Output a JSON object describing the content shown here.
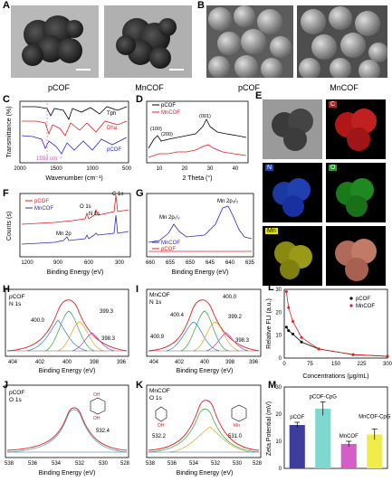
{
  "panels": {
    "A": {
      "letter": "A",
      "captions": [
        "pCOF",
        "MnCOF"
      ]
    },
    "B": {
      "letter": "B",
      "captions": [
        "pCOF",
        "MnCOF"
      ]
    },
    "C": {
      "letter": "C",
      "ylabel": "Transmittance (%)",
      "xlabel": "Wavenumber (cm⁻¹)",
      "ticks": [
        "2000",
        "1500",
        "1000",
        "500"
      ],
      "labels": {
        "tph": "Tph",
        "dha": "Dha",
        "pcof": "pCOF",
        "peak": "1592 cm⁻¹"
      }
    },
    "D": {
      "letter": "D",
      "xlabel": "2 Theta (°)",
      "ticks": [
        "10",
        "20",
        "30",
        "40"
      ],
      "legend": [
        "pCOF",
        "MnCOF"
      ],
      "peaks": [
        "(100)",
        "(200)",
        "(001)"
      ]
    },
    "E": {
      "letter": "E",
      "maps": [
        "C",
        "N",
        "O",
        "Mn"
      ]
    },
    "F": {
      "letter": "F",
      "ylabel": "Counts (s)",
      "xlabel": "Binding Energy (eV)",
      "ticks": [
        "1200",
        "900",
        "600",
        "300"
      ],
      "legend": [
        "pCOF",
        "MnCOF"
      ],
      "peaks": [
        "C 1s",
        "O 1s",
        "N 1s",
        "Mn 2p"
      ]
    },
    "G": {
      "letter": "G",
      "xlabel": "Binding Energy (eV)",
      "ticks": [
        "660",
        "655",
        "650",
        "645",
        "640",
        "635"
      ],
      "legend": [
        "MnCOF",
        "pCOF"
      ],
      "peaks": [
        "Mn 2p₁/₂",
        "Mn 2p₃/₂"
      ]
    },
    "H": {
      "letter": "H",
      "title": "pCOF\nN 1s",
      "xlabel": "Binding Energy (eV)",
      "ticks": [
        "404",
        "402",
        "400",
        "398",
        "396"
      ],
      "values": [
        "400.0",
        "399.3",
        "398.3"
      ]
    },
    "I": {
      "letter": "I",
      "title": "MnCOF\nN 1s",
      "xlabel": "Binding Energy (eV)",
      "ticks": [
        "404",
        "402",
        "400",
        "398",
        "396"
      ],
      "values": [
        "400.4",
        "400.0",
        "399.2",
        "400.9",
        "398.3"
      ]
    },
    "J": {
      "letter": "J",
      "title": "pCOF\nO 1s",
      "xlabel": "Binding Energy (eV)",
      "ticks": [
        "538",
        "536",
        "534",
        "532",
        "530",
        "528"
      ],
      "values": [
        "532.4"
      ]
    },
    "K": {
      "letter": "K",
      "title": "MnCOF\nO 1s",
      "xlabel": "Binding Energy (eV)",
      "ticks": [
        "538",
        "536",
        "534",
        "532",
        "530",
        "528"
      ],
      "values": [
        "532.2",
        "531.0"
      ]
    }
  },
  "chart_data": [
    {
      "id": "L",
      "type": "line",
      "xlabel": "Concentrations (μg/mL)",
      "ylabel": "Relative FLI (a.u.)",
      "xticks": [
        "0",
        "75",
        "150",
        "225",
        "300"
      ],
      "yticks": [
        "0",
        "10",
        "20",
        "30"
      ],
      "xlim": [
        0,
        300
      ],
      "ylim": [
        0,
        30
      ],
      "series": [
        {
          "name": "pCOF",
          "color": "#000000",
          "x": [
            6.25,
            12.5,
            25,
            50,
            100,
            200,
            300
          ],
          "y": [
            13.5,
            12,
            10.5,
            7,
            4,
            1.5,
            0.8
          ]
        },
        {
          "name": "MnCOF",
          "color": "#e02020",
          "x": [
            6.25,
            12.5,
            25,
            50,
            100,
            200,
            300
          ],
          "y": [
            29,
            22,
            16,
            9,
            4,
            1.5,
            0.8
          ]
        }
      ]
    },
    {
      "id": "M",
      "type": "bar",
      "ylabel": "Zeta Potential (mV)",
      "categories": [
        "pCOF",
        "pCOF-CpG",
        "MnCOF",
        "MnCOF-CpG"
      ],
      "values": [
        16,
        22,
        9,
        12.5
      ],
      "errors": [
        1,
        2.5,
        1,
        2
      ],
      "ylim": [
        0,
        30
      ],
      "yticks": [
        "0",
        "10",
        "20",
        "30"
      ],
      "colors": [
        "#3d3d9e",
        "#7fd8d0",
        "#d65cc8",
        "#f0ec4a"
      ]
    }
  ]
}
